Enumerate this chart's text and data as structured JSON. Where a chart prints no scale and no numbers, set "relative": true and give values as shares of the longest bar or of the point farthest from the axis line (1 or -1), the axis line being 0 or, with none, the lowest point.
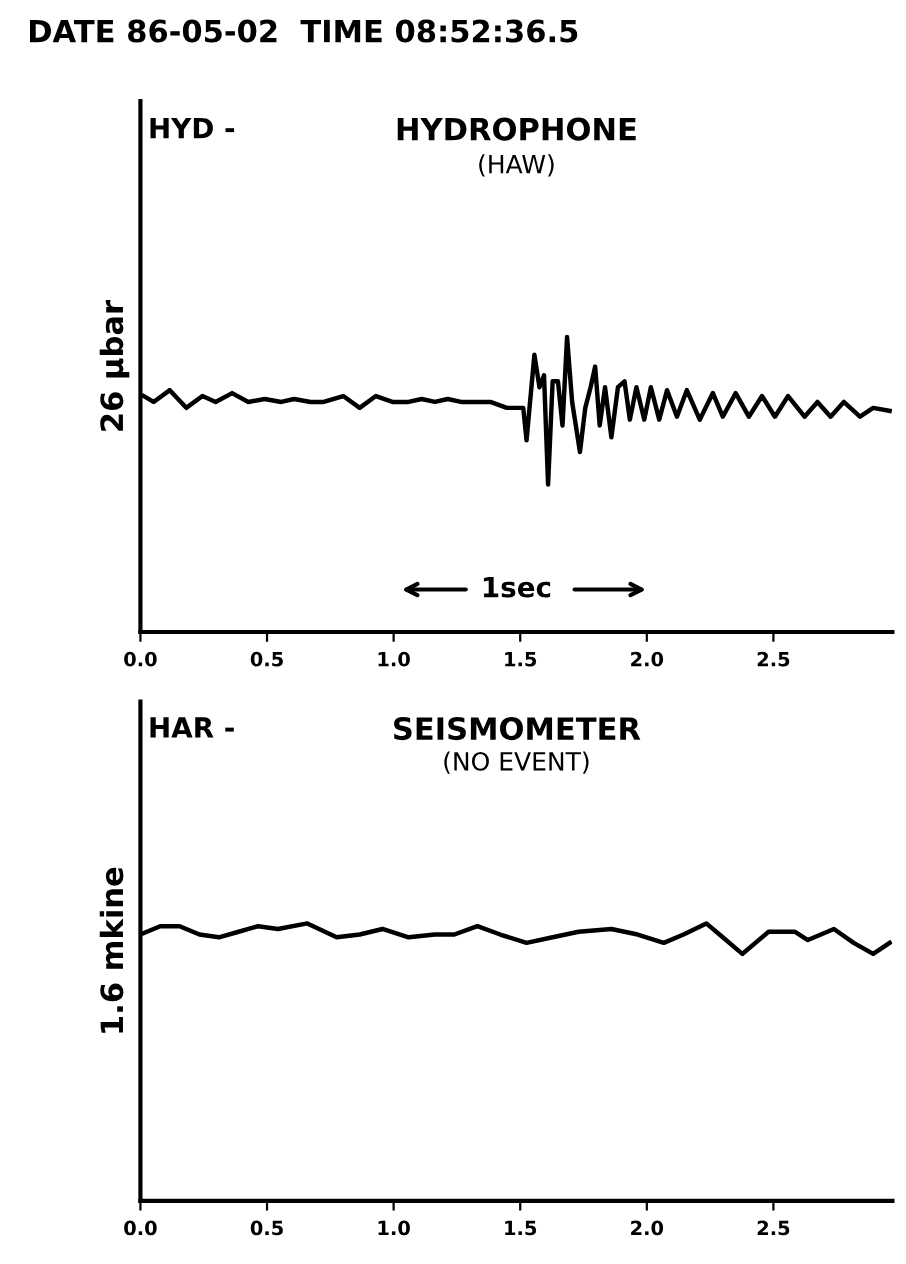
{
  "chart_data": [
    {
      "type": "line",
      "title": "HYDROPHONE",
      "subtitle": "(HAW)",
      "ylabel": "26 µbar",
      "annotations": [
        "DATE 86-05-02  TIME 08:52:36.5",
        "HYD -",
        "1sec"
      ],
      "relative": true,
      "xlim": [
        0,
        2.97
      ],
      "xticks": [
        {
          "value": 0,
          "label": "0.0"
        },
        {
          "value": 0.5,
          "label": "0.5"
        },
        {
          "value": 1.0,
          "label": "1.0"
        },
        {
          "value": 1.5,
          "label": "1.5"
        },
        {
          "value": 2.0,
          "label": "2.0"
        },
        {
          "value": 2.5,
          "label": "2.5"
        }
      ],
      "grid": false,
      "legend": false,
      "marker": "none",
      "line_style": "solid",
      "series": [
        {
          "color": "#000000",
          "x": [
            0.013,
            0.052,
            0.116,
            0.181,
            0.245,
            0.297,
            0.362,
            0.426,
            0.491,
            0.556,
            0.607,
            0.672,
            0.724,
            0.801,
            0.866,
            0.93,
            0.995,
            1.059,
            1.111,
            1.163,
            1.214,
            1.266,
            1.318,
            1.382,
            1.447,
            1.512,
            1.525,
            1.556,
            1.576,
            1.594,
            1.61,
            1.628,
            1.649,
            1.667,
            1.685,
            1.705,
            1.736,
            1.757,
            1.778,
            1.796,
            1.814,
            1.835,
            1.86,
            1.886,
            1.912,
            1.933,
            1.959,
            1.99,
            2.016,
            2.049,
            2.08,
            2.119,
            2.158,
            2.209,
            2.261,
            2.3,
            2.351,
            2.403,
            2.455,
            2.506,
            2.558,
            2.623,
            2.674,
            2.726,
            2.778,
            2.842,
            2.894,
            2.959
          ],
          "values": [
            0.8,
            0.78,
            0.82,
            0.76,
            0.8,
            0.78,
            0.81,
            0.78,
            0.79,
            0.78,
            0.79,
            0.78,
            0.78,
            0.8,
            0.76,
            0.8,
            0.78,
            0.78,
            0.79,
            0.78,
            0.79,
            0.78,
            0.78,
            0.78,
            0.76,
            0.76,
            0.65,
            0.94,
            0.83,
            0.87,
            0.5,
            0.85,
            0.85,
            0.7,
            1,
            0.78,
            0.61,
            0.76,
            0.83,
            0.9,
            0.7,
            0.83,
            0.66,
            0.83,
            0.85,
            0.72,
            0.83,
            0.72,
            0.83,
            0.72,
            0.82,
            0.73,
            0.82,
            0.72,
            0.81,
            0.73,
            0.81,
            0.73,
            0.8,
            0.73,
            0.8,
            0.73,
            0.78,
            0.73,
            0.78,
            0.73,
            0.76,
            0.75
          ]
        }
      ]
    },
    {
      "type": "line",
      "title": "SEISMOMETER",
      "subtitle": "(NO EVENT)",
      "ylabel": "1.6 mkine",
      "annotations": [
        "HAR -"
      ],
      "relative": true,
      "xlim": [
        0,
        2.97
      ],
      "xticks": [
        {
          "value": 0,
          "label": "0.0"
        },
        {
          "value": 0.5,
          "label": "0.5"
        },
        {
          "value": 1.0,
          "label": "1.0"
        },
        {
          "value": 1.5,
          "label": "1.5"
        },
        {
          "value": 2.0,
          "label": "2.0"
        },
        {
          "value": 2.5,
          "label": "2.5"
        }
      ],
      "grid": false,
      "legend": false,
      "marker": "none",
      "line_style": "solid",
      "series": [
        {
          "color": "#000000",
          "x": [
            0,
            0.078,
            0.155,
            0.233,
            0.31,
            0.388,
            0.465,
            0.543,
            0.659,
            0.775,
            0.866,
            0.956,
            1.059,
            1.163,
            1.24,
            1.331,
            1.421,
            1.525,
            1.628,
            1.731,
            1.86,
            1.964,
            2.067,
            2.145,
            2.235,
            2.3,
            2.377,
            2.481,
            2.584,
            2.636,
            2.739,
            2.817,
            2.894,
            2.959
          ],
          "values": [
            0.96,
            0.99,
            0.99,
            0.96,
            0.95,
            0.97,
            0.99,
            0.98,
            1,
            0.95,
            0.96,
            0.98,
            0.95,
            0.96,
            0.96,
            0.99,
            0.96,
            0.93,
            0.95,
            0.97,
            0.98,
            0.96,
            0.93,
            0.96,
            1,
            0.95,
            0.89,
            0.97,
            0.97,
            0.94,
            0.98,
            0.93,
            0.89,
            0.93
          ]
        }
      ]
    }
  ]
}
